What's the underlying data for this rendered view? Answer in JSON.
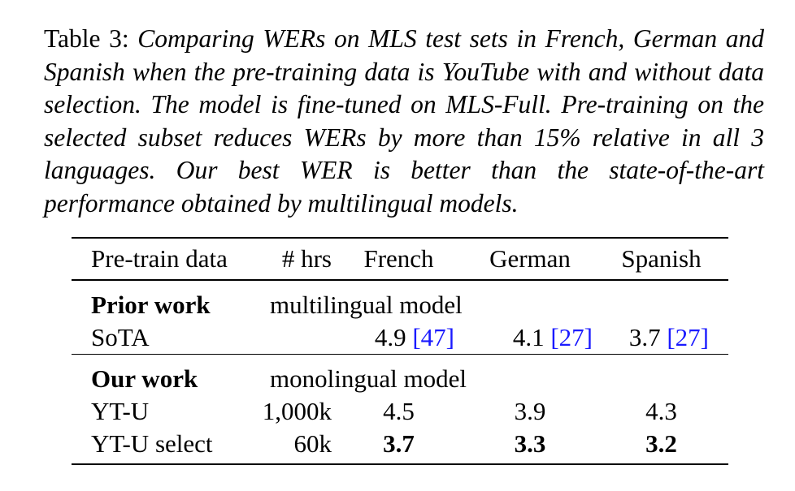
{
  "caption": {
    "label": "Table 3:",
    "text": "Comparing WERs on MLS test sets in French, German and Spanish when the pre-training data is YouTube with and without data selection. The model is fine-tuned on MLS-Full. Pre-training on the selected subset reduces WERs by more than 15% relative in all 3 languages. Our best WER is better than the state-of-the-art performance obtained by multilingual models."
  },
  "table": {
    "headers": [
      "Pre-train data",
      "# hrs",
      "French",
      "German",
      "Spanish"
    ],
    "prior": {
      "title": "Prior work",
      "desc": "multilingual model",
      "sota": {
        "label": "SoTA",
        "hrs": "",
        "french": "4.9",
        "french_cite": "[47]",
        "german": "4.1",
        "german_cite": "[27]",
        "spanish": "3.7",
        "spanish_cite": "[27]"
      }
    },
    "ours": {
      "title": "Our work",
      "desc": "monolingual model",
      "rows": [
        {
          "label": "YT-U",
          "hrs": "1,000k",
          "french": "4.5",
          "german": "3.9",
          "spanish": "4.3"
        },
        {
          "label": "YT-U select",
          "hrs": "60k",
          "french": "3.7",
          "german": "3.3",
          "spanish": "3.2"
        }
      ]
    },
    "citation_color": "#1a1aff"
  }
}
